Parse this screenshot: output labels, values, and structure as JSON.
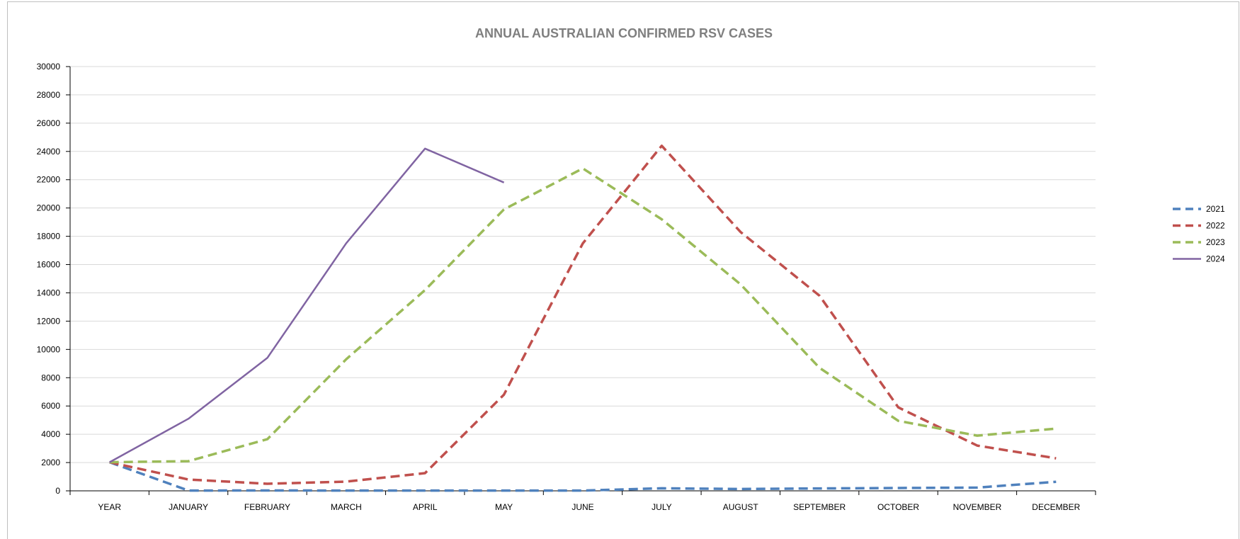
{
  "chart_data": {
    "type": "line",
    "title": "ANNUAL AUSTRALIAN CONFIRMED RSV CASES",
    "xlabel": "",
    "ylabel": "",
    "categories": [
      "YEAR",
      "JANUARY",
      "FEBRUARY",
      "MARCH",
      "APRIL",
      "MAY",
      "JUNE",
      "JULY",
      "AUGUST",
      "SEPTEMBER",
      "OCTOBER",
      "NOVEMBER",
      "DECEMBER"
    ],
    "ylim": [
      0,
      30000
    ],
    "yticks": [
      "0",
      "2000",
      "4000",
      "6000",
      "8000",
      "10000",
      "12000",
      "14000",
      "16000",
      "18000",
      "20000",
      "22000",
      "24000",
      "26000",
      "28000",
      "30000"
    ],
    "grid": true,
    "legend_position": "right",
    "series": [
      {
        "name": "2021",
        "color": "#4f81bd",
        "style": "dashed",
        "values": [
          2021,
          20,
          25,
          20,
          20,
          20,
          20,
          180,
          130,
          170,
          200,
          230,
          640
        ]
      },
      {
        "name": "2022",
        "color": "#c0504d",
        "style": "dashed",
        "values": [
          2022,
          800,
          500,
          650,
          1250,
          6800,
          17500,
          24400,
          18300,
          13800,
          5900,
          3200,
          2300
        ]
      },
      {
        "name": "2023",
        "color": "#9bbb59",
        "style": "dashed",
        "values": [
          2023,
          2100,
          3650,
          9300,
          14200,
          19900,
          22800,
          19200,
          14600,
          8700,
          4950,
          3900,
          4400
        ]
      },
      {
        "name": "2024",
        "color": "#8064a2",
        "style": "solid",
        "values": [
          2024,
          5100,
          9400,
          17500,
          24200,
          21800,
          null,
          null,
          null,
          null,
          null,
          null,
          null
        ]
      }
    ]
  }
}
